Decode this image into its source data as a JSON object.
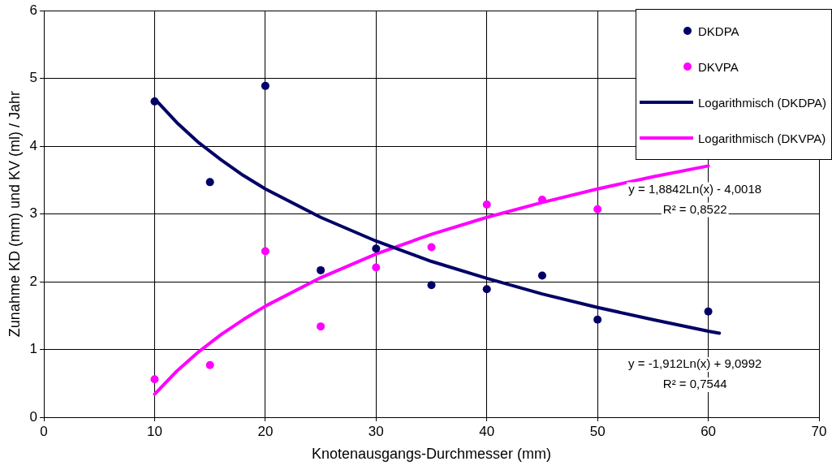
{
  "chart_data": {
    "type": "scatter",
    "xlabel": "Knotenausgangs-Durchmesser (mm)",
    "ylabel": "Zunahme KD (mm) und KV (ml) / Jahr",
    "xlim": [
      0,
      70
    ],
    "xticks": [
      0,
      10,
      20,
      30,
      40,
      50,
      60,
      70
    ],
    "ylim": [
      0,
      6
    ],
    "yticks": [
      0,
      1,
      2,
      3,
      4,
      5,
      6
    ],
    "grid": true,
    "legend": "top right",
    "marker": "circle",
    "series": [
      {
        "name": "DKDPA",
        "type": "scatter",
        "color": "#000066",
        "x": [
          10,
          15,
          20,
          25,
          30,
          35,
          40,
          45,
          50,
          60
        ],
        "values": [
          4.66,
          3.47,
          4.89,
          2.17,
          2.49,
          1.95,
          1.89,
          2.09,
          1.44,
          1.56
        ]
      },
      {
        "name": "DKVPA",
        "type": "scatter",
        "color": "#ff00ff",
        "x": [
          10,
          15,
          20,
          25,
          30,
          35,
          40,
          45,
          50
        ],
        "values": [
          0.56,
          0.77,
          2.45,
          1.34,
          2.21,
          2.51,
          3.14,
          3.21,
          3.07
        ]
      },
      {
        "name": "Logarithmisch (DKDPA)",
        "type": "line",
        "marker": "none",
        "line_style": "solid",
        "color": "#000066",
        "x": [
          10,
          12,
          14,
          16,
          18,
          20,
          25,
          30,
          35,
          40,
          45,
          50,
          55,
          60,
          61
        ],
        "values": [
          4.7,
          4.35,
          4.05,
          3.8,
          3.57,
          3.37,
          2.95,
          2.6,
          2.3,
          2.05,
          1.82,
          1.62,
          1.44,
          1.27,
          1.24
        ]
      },
      {
        "name": "Logarithmisch (DKVPA)",
        "type": "line",
        "marker": "none",
        "line_style": "solid",
        "color": "#ff00ff",
        "x": [
          10,
          12,
          14,
          16,
          18,
          20,
          25,
          30,
          35,
          40,
          45,
          50,
          55,
          60
        ],
        "values": [
          0.34,
          0.68,
          0.97,
          1.22,
          1.44,
          1.64,
          2.06,
          2.41,
          2.7,
          2.95,
          3.17,
          3.37,
          3.55,
          3.71
        ]
      }
    ],
    "annotations": [
      "y = 1,8842Ln(x) - 4,0018",
      "R² = 0,8522",
      "y = -1,912Ln(x) + 9,0992",
      "R² = 0,7544"
    ]
  }
}
